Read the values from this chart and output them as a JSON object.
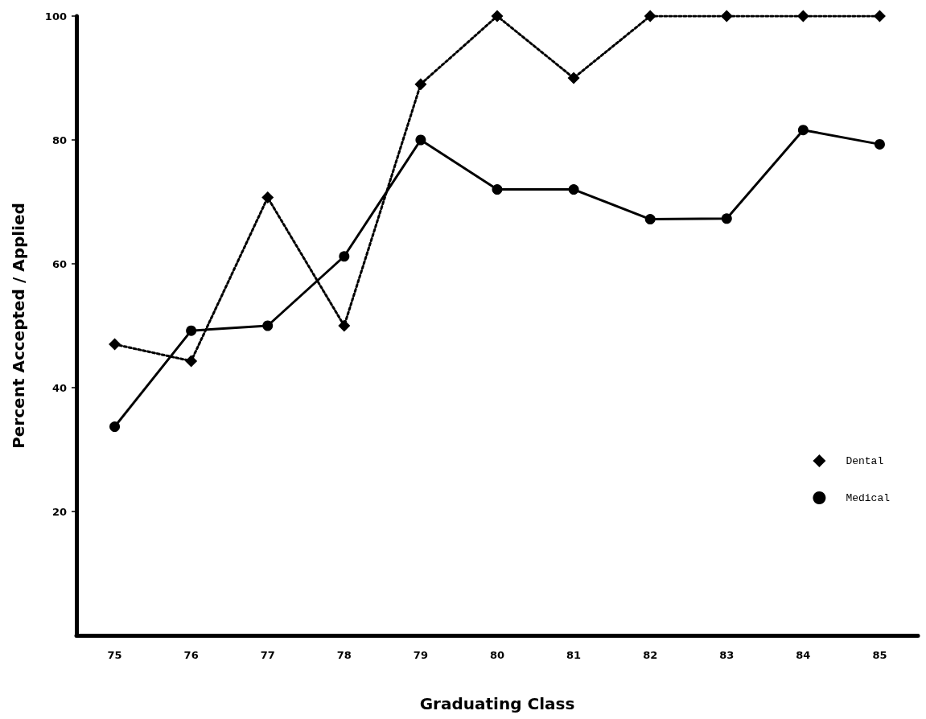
{
  "chart_data": {
    "type": "line",
    "xlabel": "Graduating Class",
    "ylabel": "Percent Accepted / Applied",
    "categories": [
      "75",
      "76",
      "77",
      "78",
      "79",
      "80",
      "81",
      "82",
      "83",
      "84",
      "85"
    ],
    "series": [
      {
        "name": "Dental",
        "color": "#000000",
        "marker": "diamond",
        "line_style": "dotted",
        "values": [
          47,
          44.3,
          70.7,
          50,
          89,
          100,
          90,
          100,
          100,
          100,
          100
        ]
      },
      {
        "name": "Medical",
        "color": "#000000",
        "marker": "circle",
        "line_style": "solid",
        "values": [
          33.7,
          49.2,
          50,
          61.2,
          80,
          72,
          72,
          67.2,
          67.3,
          81.6,
          79.3
        ]
      }
    ],
    "ylim": [
      0,
      100
    ],
    "yticks": [
      20,
      40,
      60,
      80,
      100
    ],
    "grid": false,
    "legend": "right"
  }
}
